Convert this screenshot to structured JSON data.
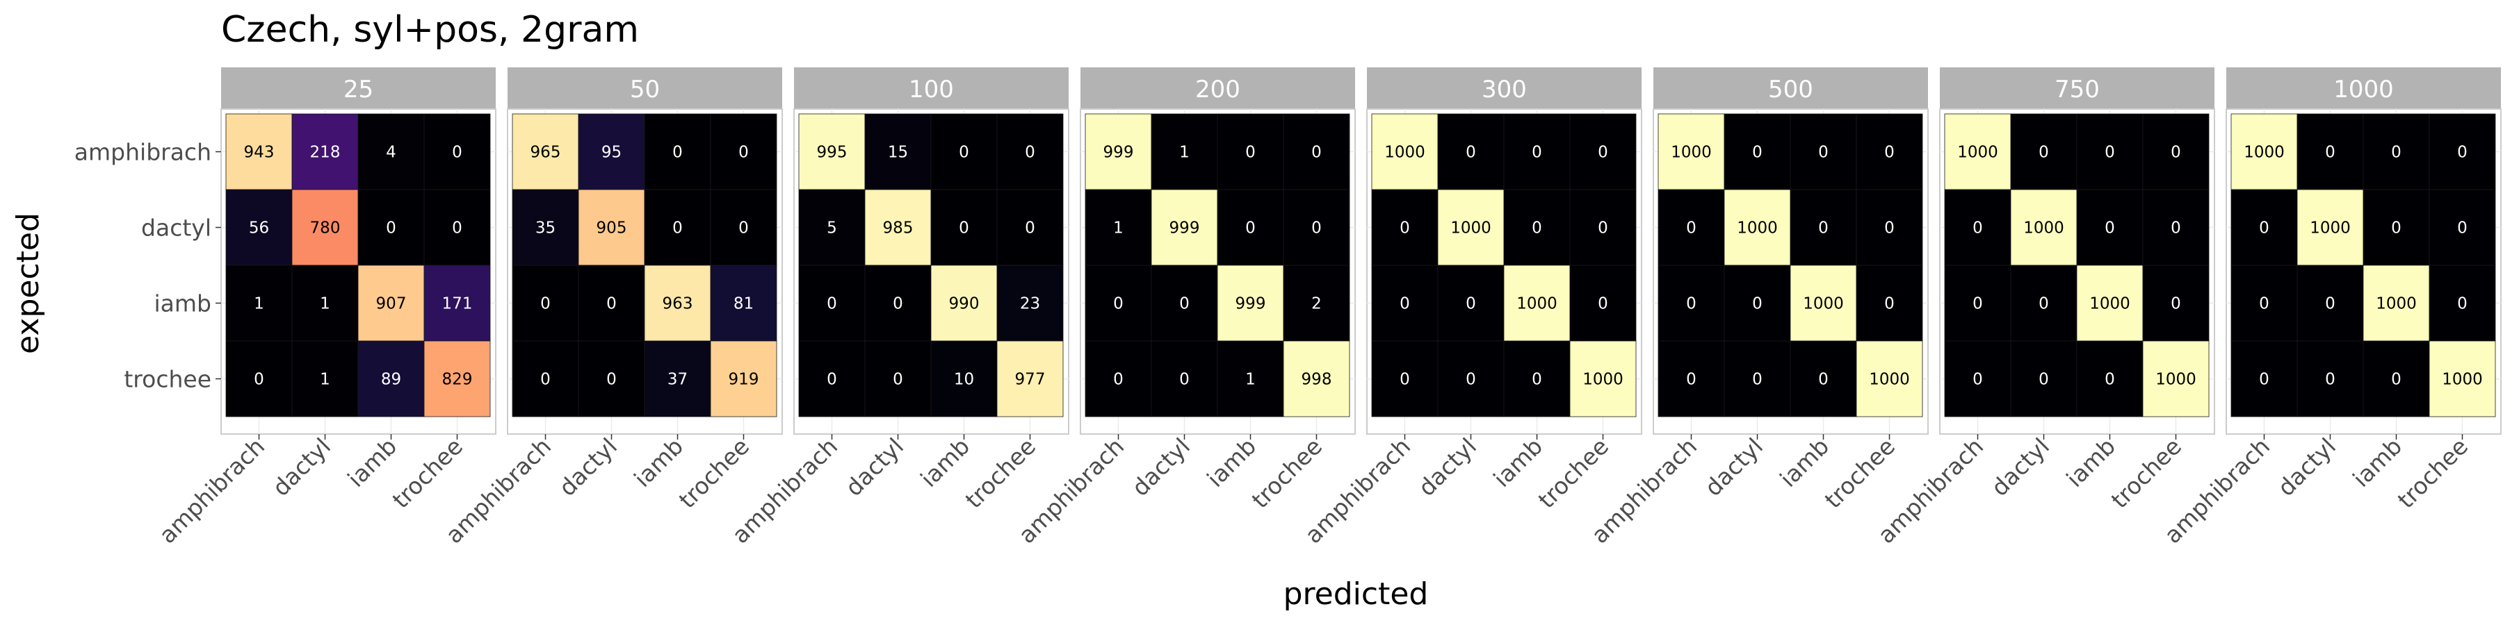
{
  "chart_data": {
    "type": "heatmap",
    "title": "Czech, syl+pos, 2gram",
    "xlabel": "predicted",
    "ylabel": "expected",
    "rows": [
      "amphibrach",
      "dactyl",
      "iamb",
      "trochee"
    ],
    "columns": [
      "amphibrach",
      "dactyl",
      "iamb",
      "trochee"
    ],
    "value_range": [
      0,
      1000
    ],
    "color_scale": "magma",
    "grid": true,
    "legend": "none",
    "panels": [
      {
        "label": "25",
        "matrix": [
          [
            943,
            218,
            4,
            0
          ],
          [
            56,
            780,
            0,
            0
          ],
          [
            1,
            1,
            907,
            171
          ],
          [
            0,
            1,
            89,
            829
          ]
        ]
      },
      {
        "label": "50",
        "matrix": [
          [
            965,
            95,
            0,
            0
          ],
          [
            35,
            905,
            0,
            0
          ],
          [
            0,
            0,
            963,
            81
          ],
          [
            0,
            0,
            37,
            919
          ]
        ]
      },
      {
        "label": "100",
        "matrix": [
          [
            995,
            15,
            0,
            0
          ],
          [
            5,
            985,
            0,
            0
          ],
          [
            0,
            0,
            990,
            23
          ],
          [
            0,
            0,
            10,
            977
          ]
        ]
      },
      {
        "label": "200",
        "matrix": [
          [
            999,
            1,
            0,
            0
          ],
          [
            1,
            999,
            0,
            0
          ],
          [
            0,
            0,
            999,
            2
          ],
          [
            0,
            0,
            1,
            998
          ]
        ]
      },
      {
        "label": "300",
        "matrix": [
          [
            1000,
            0,
            0,
            0
          ],
          [
            0,
            1000,
            0,
            0
          ],
          [
            0,
            0,
            1000,
            0
          ],
          [
            0,
            0,
            0,
            1000
          ]
        ]
      },
      {
        "label": "500",
        "matrix": [
          [
            1000,
            0,
            0,
            0
          ],
          [
            0,
            1000,
            0,
            0
          ],
          [
            0,
            0,
            1000,
            0
          ],
          [
            0,
            0,
            0,
            1000
          ]
        ]
      },
      {
        "label": "750",
        "matrix": [
          [
            1000,
            0,
            0,
            0
          ],
          [
            0,
            1000,
            0,
            0
          ],
          [
            0,
            0,
            1000,
            0
          ],
          [
            0,
            0,
            0,
            1000
          ]
        ]
      },
      {
        "label": "1000",
        "matrix": [
          [
            1000,
            0,
            0,
            0
          ],
          [
            0,
            1000,
            0,
            0
          ],
          [
            0,
            0,
            1000,
            0
          ],
          [
            0,
            0,
            0,
            1000
          ]
        ]
      }
    ]
  }
}
